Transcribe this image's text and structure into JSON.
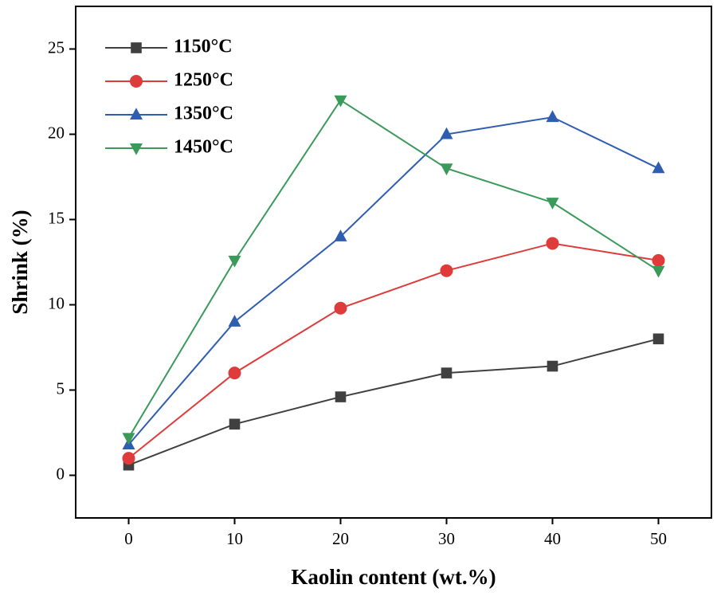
{
  "chart_data": {
    "type": "line",
    "x_label": "Kaolin content (wt.%)",
    "y_label": "Shrink (%)",
    "x": [
      0,
      10,
      20,
      30,
      40,
      50
    ],
    "series": [
      {
        "name": "1150°C",
        "color": "#404040",
        "marker": "square",
        "values": [
          0.6,
          3.0,
          4.6,
          6.0,
          6.4,
          8.0
        ]
      },
      {
        "name": "1250°C",
        "color": "#e03b3b",
        "marker": "circle",
        "values": [
          1.0,
          6.0,
          9.8,
          12.0,
          13.6,
          12.6
        ]
      },
      {
        "name": "1350°C",
        "color": "#2f5db0",
        "marker": "triangle-up",
        "values": [
          1.8,
          9.0,
          14.0,
          20.0,
          21.0,
          18.0
        ]
      },
      {
        "name": "1450°C",
        "color": "#3a9a5a",
        "marker": "triangle-down",
        "values": [
          2.2,
          12.6,
          22.0,
          18.0,
          16.0,
          12.0
        ]
      }
    ],
    "xlim": [
      -5,
      55
    ],
    "xticks": [
      0,
      10,
      20,
      30,
      40,
      50
    ],
    "ylim": [
      -2.5,
      27.5
    ],
    "yticks": [
      0,
      5,
      10,
      15,
      20,
      25
    ],
    "legend": "upper-left"
  }
}
